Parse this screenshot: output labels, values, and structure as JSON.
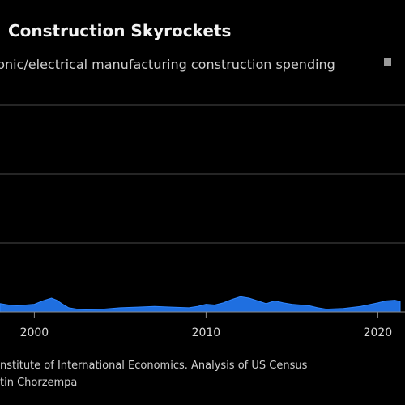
{
  "chart_data": {
    "type": "area",
    "title": "Construction Skyrockets",
    "subtitle": "ronic/electrical manufacturing construction spending",
    "xlabel": "",
    "ylabel": "",
    "grid": true,
    "color": "#1f6fe0",
    "x_tick_labels": [
      "2000",
      "2010",
      "2020"
    ],
    "x": [
      1998.0,
      1998.5,
      1999.0,
      1999.5,
      2000.0,
      2000.5,
      2001.0,
      2001.3,
      2001.6,
      2002.0,
      2002.5,
      2003.0,
      2004.0,
      2005.0,
      2006.0,
      2007.0,
      2008.0,
      2009.0,
      2009.5,
      2010.0,
      2010.5,
      2011.0,
      2011.5,
      2012.0,
      2012.5,
      2013.0,
      2013.5,
      2014.0,
      2014.5,
      2015.0,
      2016.0,
      2016.5,
      2017.0,
      2018.0,
      2019.0,
      2020.0,
      2020.5,
      2021.0,
      2021.3
    ],
    "values": [
      1.2,
      1.0,
      0.9,
      1.0,
      1.1,
      1.6,
      2.0,
      1.7,
      1.2,
      0.6,
      0.4,
      0.3,
      0.4,
      0.6,
      0.7,
      0.8,
      0.7,
      0.6,
      0.8,
      1.1,
      1.0,
      1.3,
      1.8,
      2.2,
      2.0,
      1.6,
      1.2,
      1.6,
      1.3,
      1.1,
      0.9,
      0.6,
      0.4,
      0.5,
      0.8,
      1.3,
      1.6,
      1.7,
      1.5
    ]
  },
  "source_lines": [
    "nstitute of International Economics. Analysis of US Census",
    "tin Chorzempa"
  ]
}
